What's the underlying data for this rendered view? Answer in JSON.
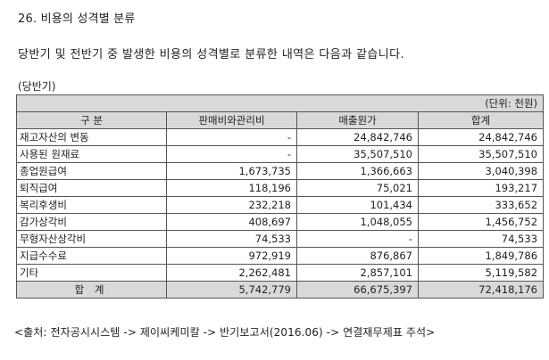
{
  "section_title": "26. 비용의 성격별 분류",
  "intro": "당반기 및 전반기 중 발생한 비용의 성격별로 분류한 내역은 다음과 같습니다.",
  "period_label": "(당반기)",
  "table": {
    "unit": "(단위: 천원)",
    "headers": [
      "구 분",
      "판매비와관리비",
      "매출원가",
      "합계"
    ],
    "rows": [
      {
        "label": "재고자산의 변동",
        "sga": "-",
        "cogs": "24,842,746",
        "total": "24,842,746"
      },
      {
        "label": "사용된 원재료",
        "sga": "-",
        "cogs": "35,507,510",
        "total": "35,507,510"
      },
      {
        "label": "종업원급여",
        "sga": "1,673,735",
        "cogs": "1,366,663",
        "total": "3,040,398"
      },
      {
        "label": "퇴직급여",
        "sga": "118,196",
        "cogs": "75,021",
        "total": "193,217"
      },
      {
        "label": "복리후생비",
        "sga": "232,218",
        "cogs": "101,434",
        "total": "333,652"
      },
      {
        "label": "감가상각비",
        "sga": "408,697",
        "cogs": "1,048,055",
        "total": "1,456,752"
      },
      {
        "label": "무형자산상각비",
        "sga": "74,533",
        "cogs": "-",
        "total": "74,533"
      },
      {
        "label": "지급수수료",
        "sga": "972,919",
        "cogs": "876,867",
        "total": "1,849,786"
      },
      {
        "label": "기타",
        "sga": "2,262,481",
        "cogs": "2,857,101",
        "total": "5,119,582"
      }
    ],
    "total_row": {
      "label": "합 계",
      "sga": "5,742,779",
      "cogs": "66,675,397",
      "total": "72,418,176"
    }
  },
  "source": "<출처: 전자공시시스템 -> 제이씨케미칼 -> 반기보고서(2016.06) -> 연결재무제표 주석>"
}
